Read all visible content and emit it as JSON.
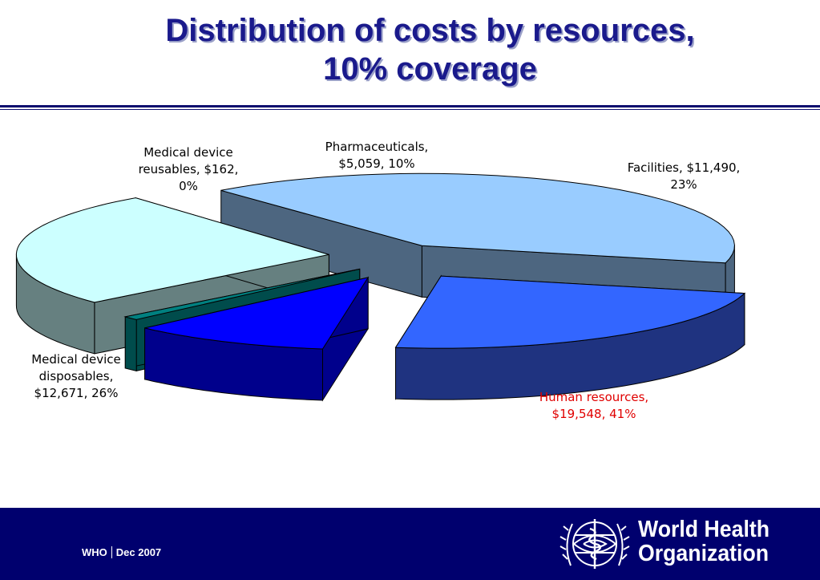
{
  "slide": {
    "title_line1": "Distribution of costs by resources,",
    "title_line2": "10% coverage"
  },
  "chart_data": {
    "type": "pie",
    "title": "Distribution of costs by resources, 10% coverage",
    "slices": [
      {
        "name": "Human resources",
        "value": 19548,
        "percent": 41,
        "color": "#99ccff",
        "side": "#4d6680",
        "label_lines": [
          "Human resources,",
          "$19,548, 41%"
        ],
        "label_color": "#e00000"
      },
      {
        "name": "Facilities",
        "value": 11490,
        "percent": 23,
        "color": "#3366ff",
        "side": "#1f3380",
        "label_lines": [
          "Facilities, $11,490,",
          "23%"
        ],
        "label_color": "#000000"
      },
      {
        "name": "Pharmaceuticals",
        "value": 5059,
        "percent": 10,
        "color": "#0000ff",
        "side": "#00008c",
        "label_lines": [
          "Pharmaceuticals,",
          "$5,059, 10%"
        ],
        "label_color": "#000000"
      },
      {
        "name": "Medical device reusables",
        "value": 162,
        "percent": 0,
        "color": "#008080",
        "side": "#004c4c",
        "label_lines": [
          "Medical device",
          "reusables, $162,",
          "0%"
        ],
        "label_color": "#000000"
      },
      {
        "name": "Medical device disposables",
        "value": 12671,
        "percent": 26,
        "color": "#ccffff",
        "side": "#668080",
        "label_lines": [
          "Medical device",
          "disposables,",
          "$12,671, 26%"
        ],
        "label_color": "#000000"
      }
    ]
  },
  "footer": {
    "org_short": "WHO",
    "date": "Dec 2007",
    "org_name_line1": "World Health",
    "org_name_line2": "Organization"
  },
  "colors": {
    "title": "#1a1a8c",
    "footer_bg": "#00006e",
    "highlight_label": "#e00000"
  },
  "icons": {
    "logo": "who-emblem-icon"
  }
}
